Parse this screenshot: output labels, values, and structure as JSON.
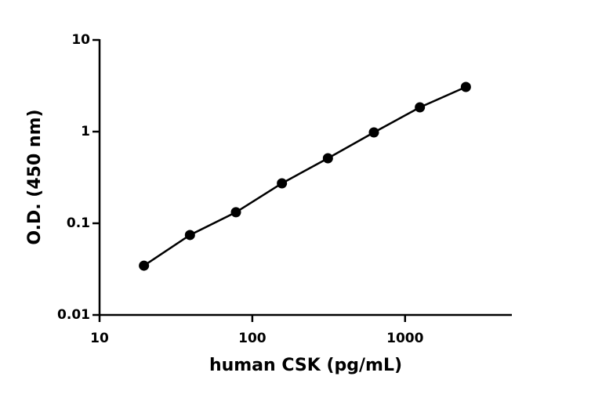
{
  "chart_data": {
    "type": "line",
    "markers": true,
    "x_label": "human CSK (pg/mL)",
    "y_label": "O.D. (450 nm)",
    "x": [
      19.53,
      39.06,
      78.13,
      156.25,
      312.5,
      625,
      1250,
      2500
    ],
    "values": [
      0.0345,
      0.0745,
      0.132,
      0.273,
      0.512,
      0.98,
      1.84,
      3.07
    ],
    "color": "#000000",
    "xlim": [
      10,
      5000
    ],
    "ylim": [
      0.01,
      10
    ],
    "xticks": [
      10,
      100,
      1000
    ],
    "yticks": [
      0.01,
      0.1,
      1,
      10
    ],
    "x_log": true,
    "y_log": true,
    "grid": false
  }
}
